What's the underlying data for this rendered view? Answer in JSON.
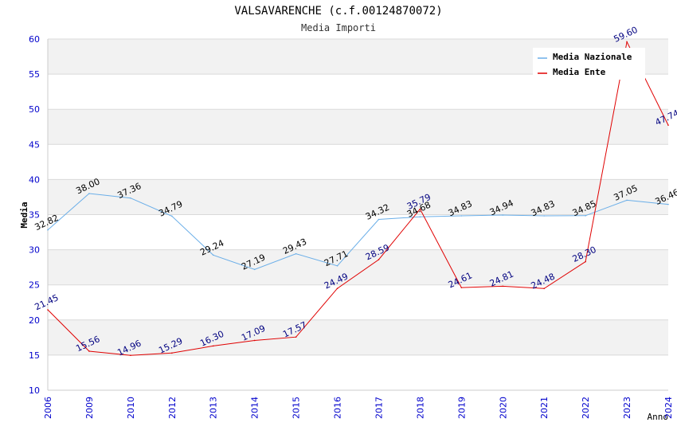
{
  "chart_data": {
    "type": "line",
    "title": "VALSAVARENCHE (c.f.00124870072)",
    "subtitle": "Media Importi",
    "xlabel": "Anno",
    "ylabel": "Media",
    "ylim": [
      10,
      60
    ],
    "yticks": [
      "10",
      "15",
      "20",
      "25",
      "30",
      "35",
      "40",
      "45",
      "50",
      "55",
      "60"
    ],
    "categories": [
      "2006",
      "2009",
      "2010",
      "2012",
      "2013",
      "2014",
      "2015",
      "2016",
      "2017",
      "2018",
      "2019",
      "2020",
      "2021",
      "2022",
      "2023",
      "2024"
    ],
    "legend_position": "top-right",
    "series": [
      {
        "name": "Media Nazionale",
        "color": "#6aaee8",
        "label_color": "#000000",
        "values": [
          32.82,
          38.0,
          37.36,
          34.79,
          29.24,
          27.19,
          29.43,
          27.71,
          34.32,
          34.68,
          34.83,
          34.94,
          34.83,
          34.85,
          37.05,
          36.46
        ],
        "labels": [
          "32.82",
          "38.00",
          "37.36",
          "34.79",
          "29.24",
          "27.19",
          "29.43",
          "27.71",
          "34.32",
          "34.68",
          "34.83",
          "34.94",
          "34.83",
          "34.85",
          "37.05",
          "36.46"
        ]
      },
      {
        "name": "Media Ente",
        "color": "#e00000",
        "label_color": "#000080",
        "values": [
          21.45,
          15.56,
          14.96,
          15.29,
          16.3,
          17.09,
          17.57,
          24.49,
          28.59,
          35.79,
          24.61,
          24.81,
          24.48,
          28.3,
          59.6,
          47.74
        ],
        "labels": [
          "21.45",
          "15.56",
          "14.96",
          "15.29",
          "16.30",
          "17.09",
          "17.57",
          "24.49",
          "28.59",
          "35.79",
          "24.61",
          "24.81",
          "24.48",
          "28.30",
          "59.60",
          "47.74"
        ]
      }
    ],
    "colors": {
      "band_alt": "#f2f2f2",
      "grid": "#d9d9d9",
      "tick_label": "#0000cc"
    }
  }
}
